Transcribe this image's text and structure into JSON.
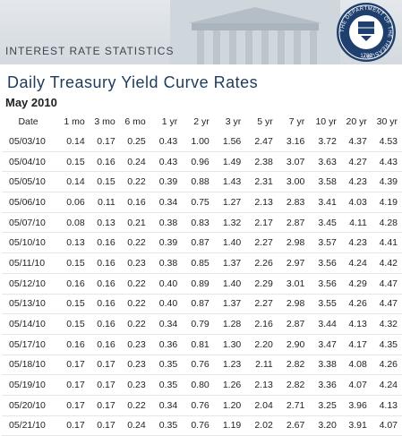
{
  "banner": {
    "title": "INTEREST RATE STATISTICS"
  },
  "seal": {
    "ring_text": "THE DEPARTMENT OF THE TREASURY",
    "year": "1789"
  },
  "page_title": "Daily Treasury Yield Curve Rates",
  "month": "May 2010",
  "columns": [
    "Date",
    "1 mo",
    "3 mo",
    "6 mo",
    "1 yr",
    "2 yr",
    "3 yr",
    "5 yr",
    "7 yr",
    "10 yr",
    "20 yr",
    "30 yr"
  ],
  "rows": [
    [
      "05/03/10",
      "0.14",
      "0.17",
      "0.25",
      "0.43",
      "1.00",
      "1.56",
      "2.47",
      "3.16",
      "3.72",
      "4.37",
      "4.53"
    ],
    [
      "05/04/10",
      "0.15",
      "0.16",
      "0.24",
      "0.43",
      "0.96",
      "1.49",
      "2.38",
      "3.07",
      "3.63",
      "4.27",
      "4.43"
    ],
    [
      "05/05/10",
      "0.14",
      "0.15",
      "0.22",
      "0.39",
      "0.88",
      "1.43",
      "2.31",
      "3.00",
      "3.58",
      "4.23",
      "4.39"
    ],
    [
      "05/06/10",
      "0.06",
      "0.11",
      "0.16",
      "0.34",
      "0.75",
      "1.27",
      "2.13",
      "2.83",
      "3.41",
      "4.03",
      "4.19"
    ],
    [
      "05/07/10",
      "0.08",
      "0.13",
      "0.21",
      "0.38",
      "0.83",
      "1.32",
      "2.17",
      "2.87",
      "3.45",
      "4.11",
      "4.28"
    ],
    [
      "05/10/10",
      "0.13",
      "0.16",
      "0.22",
      "0.39",
      "0.87",
      "1.40",
      "2.27",
      "2.98",
      "3.57",
      "4.23",
      "4.41"
    ],
    [
      "05/11/10",
      "0.15",
      "0.16",
      "0.23",
      "0.38",
      "0.85",
      "1.37",
      "2.26",
      "2.97",
      "3.56",
      "4.24",
      "4.42"
    ],
    [
      "05/12/10",
      "0.16",
      "0.16",
      "0.22",
      "0.40",
      "0.89",
      "1.40",
      "2.29",
      "3.01",
      "3.56",
      "4.29",
      "4.47"
    ],
    [
      "05/13/10",
      "0.15",
      "0.16",
      "0.22",
      "0.40",
      "0.87",
      "1.37",
      "2.27",
      "2.98",
      "3.55",
      "4.26",
      "4.47"
    ],
    [
      "05/14/10",
      "0.15",
      "0.16",
      "0.22",
      "0.34",
      "0.79",
      "1.28",
      "2.16",
      "2.87",
      "3.44",
      "4.13",
      "4.32"
    ],
    [
      "05/17/10",
      "0.16",
      "0.16",
      "0.23",
      "0.36",
      "0.81",
      "1.30",
      "2.20",
      "2.90",
      "3.47",
      "4.17",
      "4.35"
    ],
    [
      "05/18/10",
      "0.17",
      "0.17",
      "0.23",
      "0.35",
      "0.76",
      "1.23",
      "2.11",
      "2.82",
      "3.38",
      "4.08",
      "4.26"
    ],
    [
      "05/19/10",
      "0.17",
      "0.17",
      "0.23",
      "0.35",
      "0.80",
      "1.26",
      "2.13",
      "2.82",
      "3.36",
      "4.07",
      "4.24"
    ],
    [
      "05/20/10",
      "0.17",
      "0.17",
      "0.22",
      "0.34",
      "0.76",
      "1.20",
      "2.04",
      "2.71",
      "3.25",
      "3.96",
      "4.13"
    ],
    [
      "05/21/10",
      "0.17",
      "0.17",
      "0.24",
      "0.35",
      "0.76",
      "1.19",
      "2.02",
      "2.67",
      "3.20",
      "3.91",
      "4.07"
    ]
  ],
  "colors": {
    "title": "#1d3c5c",
    "banner": "#d3d9de",
    "seal": "#1f3f6e"
  }
}
